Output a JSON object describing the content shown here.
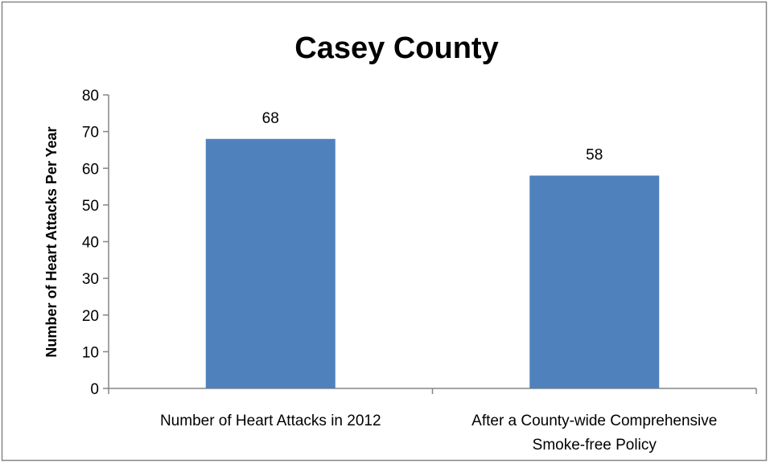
{
  "chart_data": {
    "type": "bar",
    "title": "Casey County",
    "xlabel": "",
    "ylabel": "Number of Heart Attacks Per Year",
    "categories": [
      [
        "Number of Heart Attacks in 2012"
      ],
      [
        "After a County-wide Comprehensive",
        "Smoke-free Policy"
      ]
    ],
    "values": [
      68,
      58
    ],
    "data_labels": [
      "68",
      "58"
    ],
    "ylim": [
      0,
      80
    ],
    "yticks": [
      0,
      10,
      20,
      30,
      40,
      50,
      60,
      70,
      80
    ],
    "grid": false,
    "legend": "none",
    "bar_color": "#4f81bd",
    "axis_color": "#868686",
    "border_color": "#868686"
  }
}
